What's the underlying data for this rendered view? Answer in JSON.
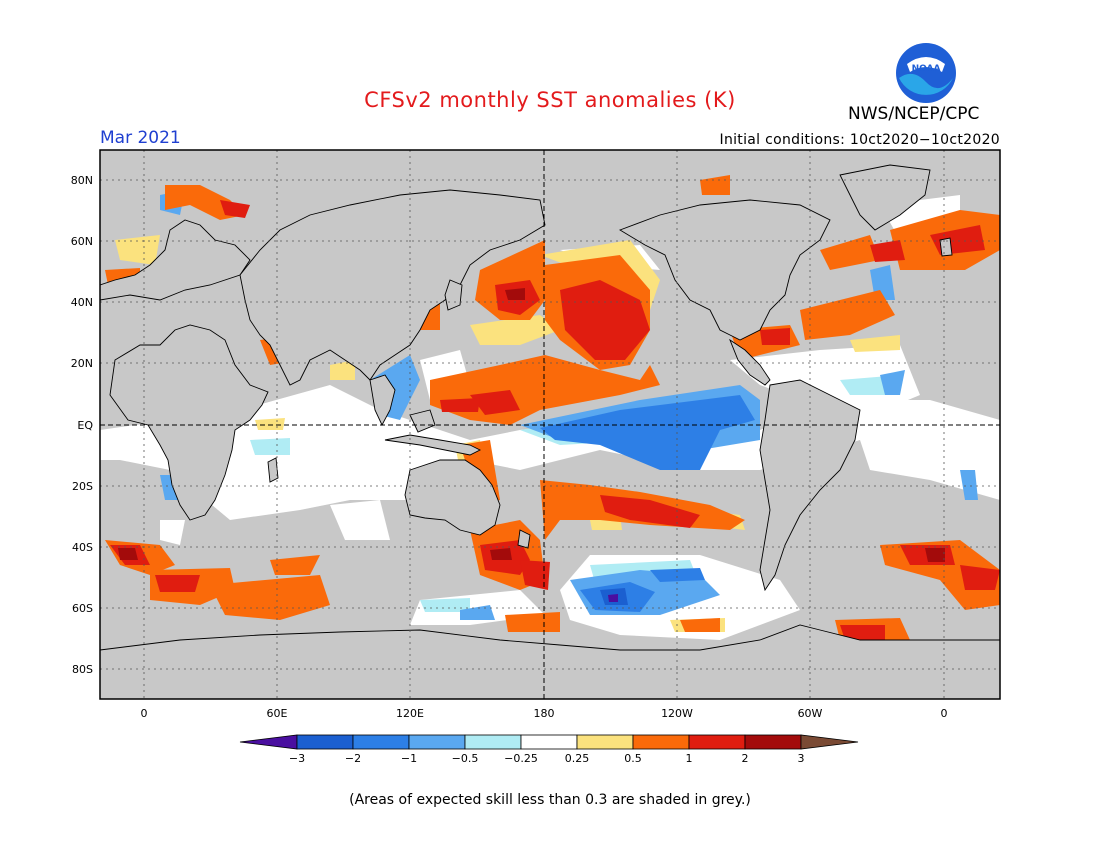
{
  "header": {
    "title": "CFSv2 monthly SST anomalies (K)",
    "agency": "NWS/NCEP/CPC",
    "logo_text": "NOAA",
    "month": "Mar 2021",
    "initial_conditions": "Initial conditions: 10ct2020−10ct2020"
  },
  "axes": {
    "lat_labels": [
      "80N",
      "60N",
      "40N",
      "20N",
      "EQ",
      "20S",
      "40S",
      "60S",
      "80S"
    ],
    "lon_labels": [
      "0",
      "60E",
      "120E",
      "180",
      "120W",
      "60W",
      "0"
    ]
  },
  "legend": {
    "tick_labels": [
      "−3",
      "−2",
      "−1",
      "−0.5",
      "−0.25",
      "0.25",
      "0.5",
      "1",
      "2",
      "3"
    ],
    "colors": [
      "#4a0fa0",
      "#1b5fd0",
      "#2d7fe6",
      "#5aa8f0",
      "#b0ecf4",
      "#ffffff",
      "#fbe27e",
      "#fa6a0a",
      "#e01d10",
      "#a30b0b",
      "#7a4a34"
    ],
    "grey_color": "#c8c8c8"
  },
  "footnote": "(Areas of expected skill less than 0.3 are shaded in grey.)"
}
